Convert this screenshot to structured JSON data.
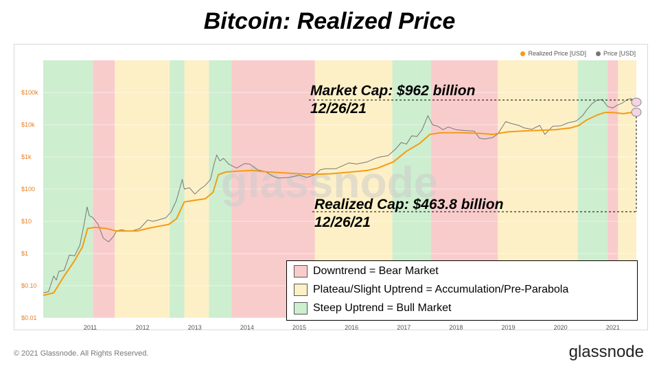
{
  "page": {
    "title": "Bitcoin: Realized Price"
  },
  "legend_top": {
    "realized_label": "Realized Price [USD]",
    "price_label": "Price [USD]",
    "realized_color": "#f39c12",
    "price_color": "#777777"
  },
  "annotations": {
    "market_cap": "Market Cap: $962 billion",
    "market_cap_date": "12/26/21",
    "realized_cap": "Realized Cap: $463.8 billion",
    "realized_cap_date": "12/26/21"
  },
  "regime_legend": [
    {
      "label": "Downtrend = Bear Market",
      "color": "#f9cccc"
    },
    {
      "label": "Plateau/Slight Uptrend = Accumulation/Pre-Parabola",
      "color": "#fdf0c6"
    },
    {
      "label": "Steep Uptrend = Bull Market",
      "color": "#cdeecf"
    }
  ],
  "watermark": "glassnode",
  "footer": {
    "copyright": "© 2021 Glassnode. All Rights Reserved.",
    "brand": "glassnode"
  },
  "chart_data": {
    "type": "line",
    "y_scale": "log",
    "ylim": [
      0.01,
      1000000
    ],
    "xlim": [
      2010.6,
      2021.95
    ],
    "x_ticks": [
      "2011",
      "2012",
      "2013",
      "2014",
      "2015",
      "2016",
      "2017",
      "2018",
      "2019",
      "2020",
      "2021"
    ],
    "y_ticks": [
      {
        "value": 0.01,
        "label": "$0.01"
      },
      {
        "value": 0.1,
        "label": "$0.10"
      },
      {
        "value": 1,
        "label": "$1"
      },
      {
        "value": 10,
        "label": "$10"
      },
      {
        "value": 100,
        "label": "$100"
      },
      {
        "value": 1000,
        "label": "$1k"
      },
      {
        "value": 10000,
        "label": "$10k"
      },
      {
        "value": 100000,
        "label": "$100k"
      }
    ],
    "regions": [
      {
        "start": 2010.6,
        "end": 2011.55,
        "regime": "bull"
      },
      {
        "start": 2011.55,
        "end": 2011.97,
        "regime": "bear"
      },
      {
        "start": 2011.97,
        "end": 2013.02,
        "regime": "plateau"
      },
      {
        "start": 2013.02,
        "end": 2013.3,
        "regime": "bull"
      },
      {
        "start": 2013.3,
        "end": 2013.77,
        "regime": "plateau"
      },
      {
        "start": 2013.77,
        "end": 2014.2,
        "regime": "bull"
      },
      {
        "start": 2014.2,
        "end": 2015.8,
        "regime": "bear"
      },
      {
        "start": 2015.8,
        "end": 2017.28,
        "regime": "plateau"
      },
      {
        "start": 2017.28,
        "end": 2018.02,
        "regime": "bull"
      },
      {
        "start": 2018.02,
        "end": 2019.3,
        "regime": "bear"
      },
      {
        "start": 2019.3,
        "end": 2020.83,
        "regime": "plateau"
      },
      {
        "start": 2020.83,
        "end": 2021.4,
        "regime": "bull"
      },
      {
        "start": 2021.4,
        "end": 2021.6,
        "regime": "bear"
      },
      {
        "start": 2021.6,
        "end": 2021.95,
        "regime": "plateau"
      }
    ],
    "regime_colors": {
      "bull": "#cdeecf",
      "bear": "#f9cccc",
      "plateau": "#fdf0c6"
    },
    "series": [
      {
        "name": "Price [USD]",
        "color": "#777777",
        "points": [
          [
            2010.6,
            0.06
          ],
          [
            2010.7,
            0.065
          ],
          [
            2010.8,
            0.2
          ],
          [
            2010.85,
            0.15
          ],
          [
            2010.9,
            0.28
          ],
          [
            2011.0,
            0.3
          ],
          [
            2011.1,
            0.9
          ],
          [
            2011.2,
            0.85
          ],
          [
            2011.3,
            1.8
          ],
          [
            2011.38,
            8
          ],
          [
            2011.44,
            28
          ],
          [
            2011.48,
            15
          ],
          [
            2011.55,
            13
          ],
          [
            2011.65,
            8
          ],
          [
            2011.75,
            3
          ],
          [
            2011.85,
            2.3
          ],
          [
            2011.95,
            3.5
          ],
          [
            2012.0,
            5
          ],
          [
            2012.1,
            5.5
          ],
          [
            2012.2,
            5
          ],
          [
            2012.3,
            5
          ],
          [
            2012.45,
            6
          ],
          [
            2012.6,
            11
          ],
          [
            2012.7,
            10
          ],
          [
            2012.8,
            11
          ],
          [
            2012.95,
            13
          ],
          [
            2013.05,
            20
          ],
          [
            2013.15,
            45
          ],
          [
            2013.26,
            200
          ],
          [
            2013.3,
            100
          ],
          [
            2013.4,
            110
          ],
          [
            2013.5,
            70
          ],
          [
            2013.6,
            100
          ],
          [
            2013.7,
            130
          ],
          [
            2013.8,
            200
          ],
          [
            2013.87,
            600
          ],
          [
            2013.92,
            1150
          ],
          [
            2013.98,
            750
          ],
          [
            2014.05,
            900
          ],
          [
            2014.15,
            600
          ],
          [
            2014.3,
            450
          ],
          [
            2014.45,
            620
          ],
          [
            2014.55,
            600
          ],
          [
            2014.7,
            400
          ],
          [
            2014.85,
            350
          ],
          [
            2015.0,
            250
          ],
          [
            2015.1,
            220
          ],
          [
            2015.3,
            230
          ],
          [
            2015.5,
            270
          ],
          [
            2015.65,
            230
          ],
          [
            2015.8,
            280
          ],
          [
            2015.9,
            400
          ],
          [
            2016.0,
            430
          ],
          [
            2016.2,
            430
          ],
          [
            2016.45,
            650
          ],
          [
            2016.6,
            600
          ],
          [
            2016.8,
            700
          ],
          [
            2016.95,
            900
          ],
          [
            2017.05,
            1000
          ],
          [
            2017.2,
            1100
          ],
          [
            2017.35,
            1800
          ],
          [
            2017.45,
            2800
          ],
          [
            2017.55,
            2500
          ],
          [
            2017.65,
            4500
          ],
          [
            2017.75,
            4300
          ],
          [
            2017.85,
            7000
          ],
          [
            2017.96,
            19000
          ],
          [
            2018.05,
            10000
          ],
          [
            2018.15,
            9000
          ],
          [
            2018.25,
            7000
          ],
          [
            2018.35,
            8500
          ],
          [
            2018.5,
            7000
          ],
          [
            2018.7,
            6500
          ],
          [
            2018.85,
            6300
          ],
          [
            2018.95,
            3800
          ],
          [
            2019.05,
            3600
          ],
          [
            2019.2,
            4000
          ],
          [
            2019.3,
            5200
          ],
          [
            2019.45,
            12500
          ],
          [
            2019.55,
            11000
          ],
          [
            2019.7,
            9500
          ],
          [
            2019.8,
            8000
          ],
          [
            2019.95,
            7200
          ],
          [
            2020.1,
            9500
          ],
          [
            2020.2,
            5000
          ],
          [
            2020.35,
            9000
          ],
          [
            2020.5,
            9200
          ],
          [
            2020.65,
            11500
          ],
          [
            2020.8,
            13000
          ],
          [
            2020.92,
            19000
          ],
          [
            2021.0,
            29000
          ],
          [
            2021.1,
            45000
          ],
          [
            2021.2,
            58000
          ],
          [
            2021.3,
            60000
          ],
          [
            2021.4,
            37000
          ],
          [
            2021.5,
            33000
          ],
          [
            2021.58,
            40000
          ],
          [
            2021.68,
            47000
          ],
          [
            2021.78,
            61000
          ],
          [
            2021.85,
            65000
          ],
          [
            2021.9,
            55000
          ],
          [
            2021.95,
            50000
          ]
        ]
      },
      {
        "name": "Realized Price [USD]",
        "color": "#f39c12",
        "points": [
          [
            2010.6,
            0.05
          ],
          [
            2010.8,
            0.06
          ],
          [
            2011.0,
            0.2
          ],
          [
            2011.2,
            0.6
          ],
          [
            2011.35,
            1.6
          ],
          [
            2011.45,
            6
          ],
          [
            2011.6,
            6.5
          ],
          [
            2011.8,
            6
          ],
          [
            2012.0,
            5
          ],
          [
            2012.2,
            5
          ],
          [
            2012.4,
            5
          ],
          [
            2012.6,
            6
          ],
          [
            2012.8,
            7
          ],
          [
            2013.0,
            8
          ],
          [
            2013.15,
            12
          ],
          [
            2013.3,
            40
          ],
          [
            2013.5,
            45
          ],
          [
            2013.7,
            50
          ],
          [
            2013.85,
            80
          ],
          [
            2013.95,
            280
          ],
          [
            2014.1,
            340
          ],
          [
            2014.3,
            360
          ],
          [
            2014.6,
            380
          ],
          [
            2014.9,
            340
          ],
          [
            2015.2,
            320
          ],
          [
            2015.5,
            300
          ],
          [
            2015.8,
            290
          ],
          [
            2016.1,
            300
          ],
          [
            2016.5,
            340
          ],
          [
            2016.8,
            380
          ],
          [
            2017.0,
            450
          ],
          [
            2017.3,
            700
          ],
          [
            2017.55,
            1500
          ],
          [
            2017.8,
            2600
          ],
          [
            2018.0,
            5000
          ],
          [
            2018.2,
            5600
          ],
          [
            2018.6,
            5600
          ],
          [
            2018.95,
            5400
          ],
          [
            2019.2,
            5000
          ],
          [
            2019.5,
            6000
          ],
          [
            2019.8,
            6400
          ],
          [
            2020.1,
            6700
          ],
          [
            2020.4,
            7000
          ],
          [
            2020.7,
            8000
          ],
          [
            2020.85,
            9500
          ],
          [
            2021.0,
            14000
          ],
          [
            2021.2,
            20000
          ],
          [
            2021.35,
            24000
          ],
          [
            2021.5,
            24000
          ],
          [
            2021.7,
            22000
          ],
          [
            2021.85,
            24000
          ],
          [
            2021.95,
            24500
          ]
        ]
      }
    ]
  }
}
